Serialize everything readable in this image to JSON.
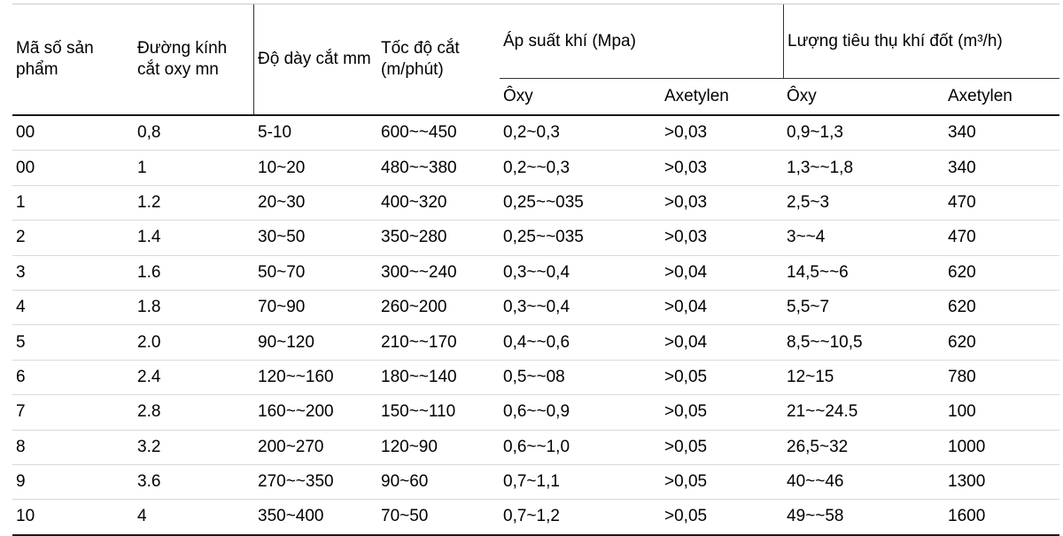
{
  "colors": {
    "background": "#ffffff",
    "text": "#000000",
    "header_rule": "#1a1a1a",
    "row_grid_line": "#d9d9d9"
  },
  "table": {
    "header": {
      "col_product_code": "Mã số sản phẩm",
      "col_oxy_diameter": "Đường kính cắt oxy mn",
      "col_thickness": "Độ dày cắt mm",
      "col_speed": "Tốc độ cắt (m/phút)",
      "group_pressure": "Áp suất khí (Mpa)",
      "group_consumption": "Lượng tiêu thụ khí đốt (m³/h)",
      "sub_oxy_pressure": "Ôxy",
      "sub_acetylene_pressure": "Axetylen",
      "sub_oxy_consumption": "Ôxy",
      "sub_acetylene_consumption": "Axetylen"
    },
    "rows": [
      [
        "00",
        "0,8",
        "5-10",
        "600~~450",
        "0,2~0,3",
        ">0,03",
        "0,9~1,3",
        "340"
      ],
      [
        "00",
        "1",
        "10~20",
        "480~~380",
        "0,2~~0,3",
        ">0,03",
        "1,3~~1,8",
        "340"
      ],
      [
        "1",
        "1.2",
        "20~30",
        "400~320",
        "0,25~~035",
        ">0,03",
        "2,5~3",
        "470"
      ],
      [
        "2",
        "1.4",
        "30~50",
        "350~280",
        "0,25~~035",
        ">0,03",
        "3~~4",
        "470"
      ],
      [
        "3",
        "1.6",
        "50~70",
        "300~~240",
        "0,3~~0,4",
        ">0,04",
        "14,5~~6",
        "620"
      ],
      [
        "4",
        "1.8",
        "70~90",
        "260~200",
        "0,3~~0,4",
        ">0,04",
        "5,5~7",
        "620"
      ],
      [
        "5",
        "2.0",
        "90~120",
        "210~~170",
        "0,4~~0,6",
        ">0,04",
        "8,5~~10,5",
        "620"
      ],
      [
        "6",
        "2.4",
        "120~~160",
        "180~~140",
        "0,5~~08",
        ">0,05",
        "12~15",
        "780"
      ],
      [
        "7",
        "2.8",
        "160~~200",
        "150~~110",
        "0,6~~0,9",
        ">0,05",
        "21~~24.5",
        "100"
      ],
      [
        "8",
        "3.2",
        "200~270",
        "120~90",
        "0,6~~1,0",
        ">0,05",
        "26,5~32",
        "1000"
      ],
      [
        "9",
        "3.6",
        "270~~350",
        "90~60",
        "0,7~1,1",
        ">0,05",
        "40~~46",
        "1300"
      ],
      [
        "10",
        "4",
        "350~400",
        "70~50",
        "0,7~1,2",
        ">0,05",
        "49~~58",
        "1600"
      ]
    ]
  }
}
